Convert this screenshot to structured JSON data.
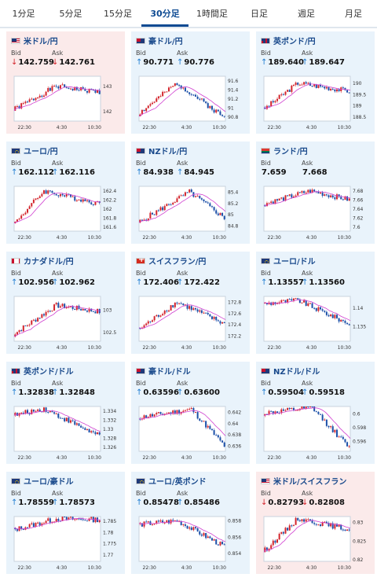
{
  "tabs": [
    {
      "label": "1分足",
      "active": false
    },
    {
      "label": "5分足",
      "active": false
    },
    {
      "label": "15分足",
      "active": false
    },
    {
      "label": "30分足",
      "active": true
    },
    {
      "label": "1時間足",
      "active": false
    },
    {
      "label": "日足",
      "active": false
    },
    {
      "label": "週足",
      "active": false
    },
    {
      "label": "月足",
      "active": false
    }
  ],
  "labels": {
    "bid": "Bid",
    "ask": "Ask"
  },
  "colors": {
    "up_arrow": "#1c7ad1",
    "down_arrow": "#d3242c",
    "bull_candle": "#d3242c",
    "bear_candle": "#1b4fa8",
    "ma_line": "#d040d0",
    "card_up_bg": "#e9f3fb",
    "card_down_bg": "#fbeaea"
  },
  "x_ticks": [
    "22:30",
    "4:30",
    "10:30"
  ],
  "pairs": [
    {
      "name": "米ドル/円",
      "flag_icon": "us-flag-icon",
      "trend": "down",
      "bid": "142.759",
      "ask": "142.761",
      "y_ticks": [
        "143",
        "142"
      ],
      "ylim": [
        141.6,
        143.4
      ],
      "start": 142.05,
      "end": 142.76,
      "peak": 143.0,
      "trough": 141.9
    },
    {
      "name": "豪ドル/円",
      "flag_icon": "au-flag-icon",
      "trend": "up",
      "bid": "90.771",
      "ask": "90.776",
      "y_ticks": [
        "91.6",
        "91.4",
        "91.2",
        "91",
        "90.8"
      ],
      "ylim": [
        90.7,
        91.7
      ],
      "start": 90.85,
      "end": 90.78,
      "peak": 91.55,
      "trough": 90.75
    },
    {
      "name": "英ポンド/円",
      "flag_icon": "gb-flag-icon",
      "trend": "up",
      "bid": "189.640",
      "ask": "189.647",
      "y_ticks": [
        "190",
        "189.5",
        "189",
        "188.5"
      ],
      "ylim": [
        188.3,
        190.3
      ],
      "start": 188.8,
      "end": 189.64,
      "peak": 190.0,
      "trough": 188.5
    },
    {
      "name": "ユーロ/円",
      "flag_icon": "eu-flag-icon",
      "trend": "up",
      "bid": "162.112",
      "ask": "162.116",
      "y_ticks": [
        "162.4",
        "162.2",
        "162",
        "161.8",
        "161.6"
      ],
      "ylim": [
        161.5,
        162.5
      ],
      "start": 161.65,
      "end": 162.11,
      "peak": 162.4,
      "trough": 161.55
    },
    {
      "name": "NZドル/円",
      "flag_icon": "nz-flag-icon",
      "trend": "up",
      "bid": "84.938",
      "ask": "84.945",
      "y_ticks": [
        "85.4",
        "85.2",
        "85",
        "84.8"
      ],
      "ylim": [
        84.7,
        85.5
      ],
      "start": 84.85,
      "end": 84.94,
      "peak": 85.4,
      "trough": 84.75
    },
    {
      "name": "ランド/円",
      "flag_icon": "za-flag-icon",
      "trend": "flat",
      "bid": "7.659",
      "ask": "7.668",
      "y_ticks": [
        "7.68",
        "7.66",
        "7.64",
        "7.62",
        "7.6"
      ],
      "ylim": [
        7.59,
        7.69
      ],
      "start": 7.65,
      "end": 7.66,
      "peak": 7.68,
      "trough": 7.61
    },
    {
      "name": "カナダドル/円",
      "flag_icon": "ca-flag-icon",
      "trend": "up",
      "bid": "102.956",
      "ask": "102.962",
      "y_ticks": [
        "103",
        "102.5"
      ],
      "ylim": [
        102.3,
        103.3
      ],
      "start": 102.45,
      "end": 102.96,
      "peak": 103.1,
      "trough": 102.35
    },
    {
      "name": "スイスフラン/円",
      "flag_icon": "ch-flag-icon",
      "trend": "up",
      "bid": "172.406",
      "ask": "172.422",
      "y_ticks": [
        "172.8",
        "172.6",
        "172.4",
        "172.2"
      ],
      "ylim": [
        172.1,
        172.9
      ],
      "start": 172.3,
      "end": 172.41,
      "peak": 172.8,
      "trough": 172.15
    },
    {
      "name": "ユーロ/ドル",
      "flag_icon": "eu-us-flag-icon",
      "trend": "up",
      "bid": "1.13557",
      "ask": "1.13560",
      "y_ticks": [
        "1.14",
        "1.135"
      ],
      "ylim": [
        1.131,
        1.143
      ],
      "start": 1.141,
      "end": 1.1356,
      "peak": 1.142,
      "trough": 1.1325
    },
    {
      "name": "英ポンド/ドル",
      "flag_icon": "gb-us-flag-icon",
      "trend": "up",
      "bid": "1.32838",
      "ask": "1.32848",
      "y_ticks": [
        "1.334",
        "1.332",
        "1.33",
        "1.328",
        "1.326"
      ],
      "ylim": [
        1.325,
        1.335
      ],
      "start": 1.333,
      "end": 1.3284,
      "peak": 1.3345,
      "trough": 1.3255
    },
    {
      "name": "豪ドル/ドル",
      "flag_icon": "au-us-flag-icon",
      "trend": "up",
      "bid": "0.63596",
      "ask": "0.63600",
      "y_ticks": [
        "0.642",
        "0.64",
        "0.638",
        "0.636"
      ],
      "ylim": [
        0.635,
        0.643
      ],
      "start": 0.641,
      "end": 0.636,
      "peak": 0.6425,
      "trough": 0.6355
    },
    {
      "name": "NZドル/ドル",
      "flag_icon": "nz-us-flag-icon",
      "trend": "up",
      "bid": "0.59504",
      "ask": "0.59518",
      "y_ticks": [
        "0.6",
        "0.598",
        "0.596"
      ],
      "ylim": [
        0.5945,
        0.601
      ],
      "start": 0.6,
      "end": 0.595,
      "peak": 0.6008,
      "trough": 0.5948
    },
    {
      "name": "ユーロ/豪ドル",
      "flag_icon": "eu-au-flag-icon",
      "trend": "up",
      "bid": "1.78559",
      "ask": "1.78573",
      "y_ticks": [
        "1.785",
        "1.78",
        "1.775",
        "1.77"
      ],
      "ylim": [
        1.767,
        1.787
      ],
      "start": 1.781,
      "end": 1.7856,
      "peak": 1.786,
      "trough": 1.769
    },
    {
      "name": "ユーロ/英ポンド",
      "flag_icon": "eu-gb-flag-icon",
      "trend": "up",
      "bid": "0.85478",
      "ask": "0.85486",
      "y_ticks": [
        "0.858",
        "0.856",
        "0.854"
      ],
      "ylim": [
        0.853,
        0.8585
      ],
      "start": 0.8575,
      "end": 0.8548,
      "peak": 0.858,
      "trough": 0.8535
    },
    {
      "name": "米ドル/スイスフラン",
      "flag_icon": "us-ch-flag-icon",
      "trend": "down",
      "bid": "0.82793",
      "ask": "0.82808",
      "y_ticks": [
        "0.83",
        "0.825",
        "0.82"
      ],
      "ylim": [
        0.8195,
        0.8315
      ],
      "start": 0.822,
      "end": 0.828,
      "peak": 0.831,
      "trough": 0.8205
    }
  ]
}
